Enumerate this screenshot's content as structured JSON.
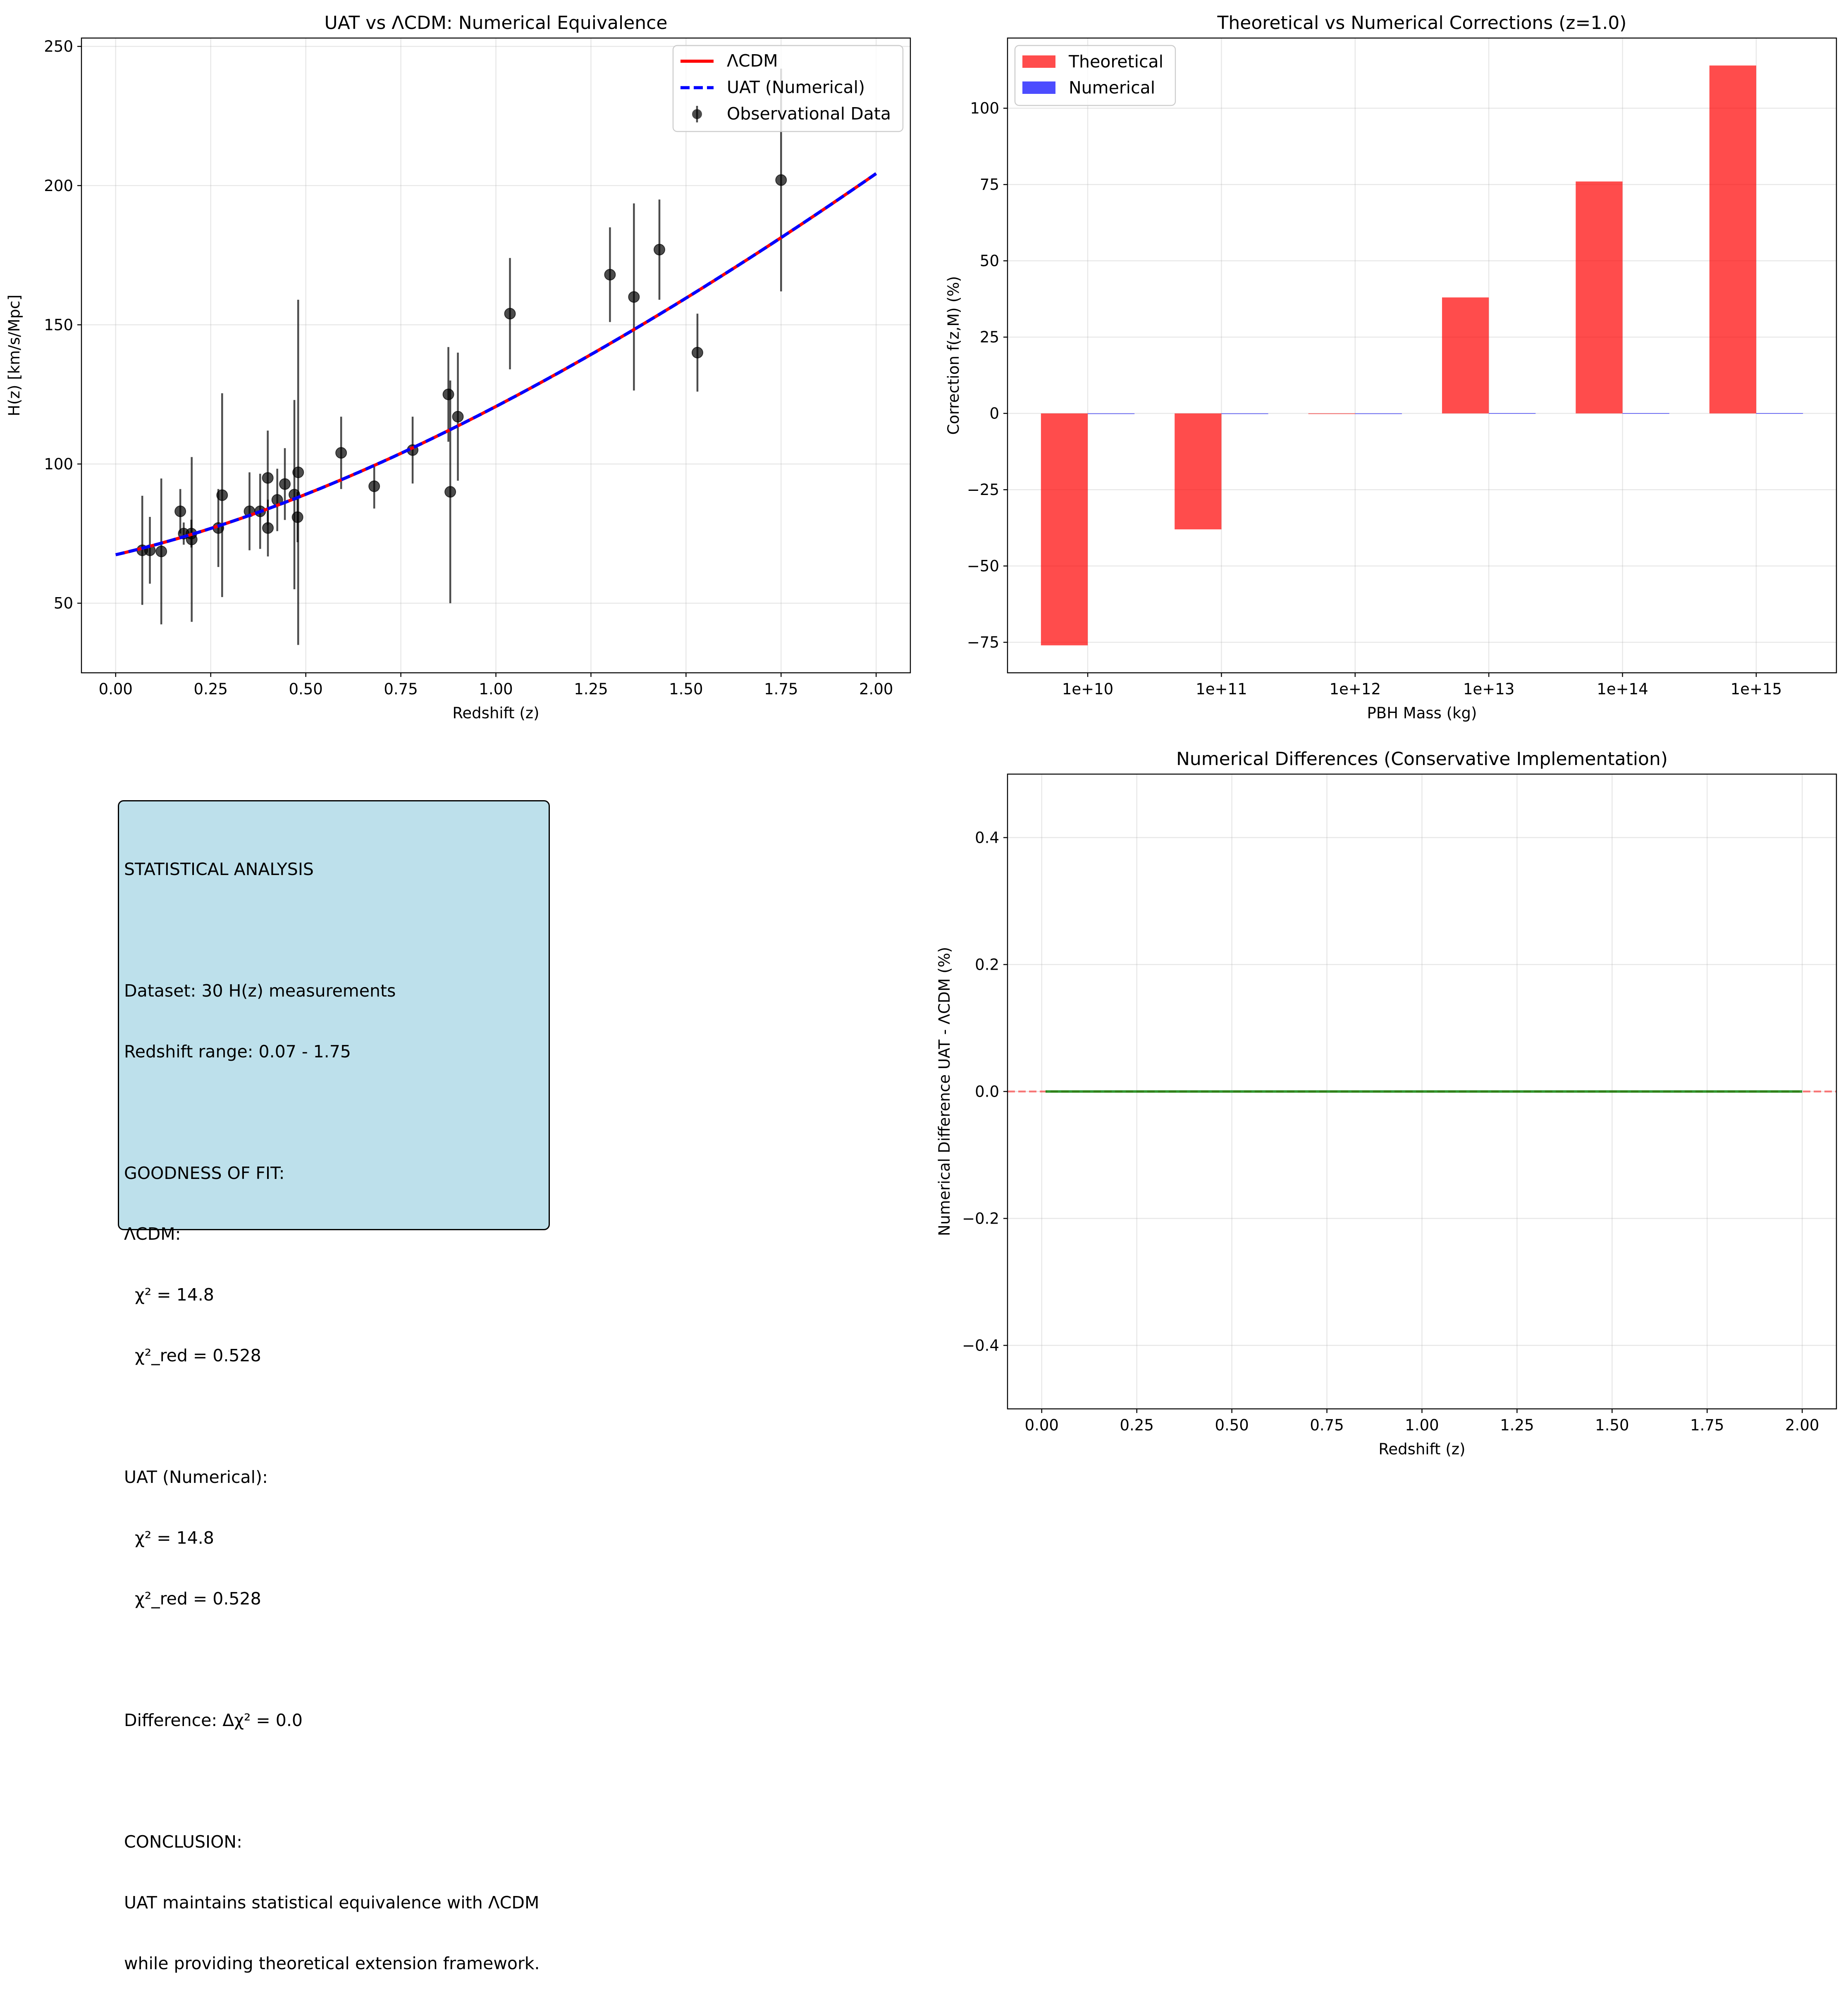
{
  "chart_data": [
    {
      "id": "panel-top-left",
      "type": "line",
      "title": "UAT vs ΛCDM: Numerical Equivalence",
      "xlabel": "Redshift (z)",
      "ylabel": "H(z) [km/s/Mpc]",
      "xlim": [
        -0.09,
        2.09
      ],
      "ylim": [
        25,
        253
      ],
      "xticks": [
        0.0,
        0.25,
        0.5,
        0.75,
        1.0,
        1.25,
        1.5,
        1.75,
        2.0
      ],
      "xtick_labels": [
        "0.00",
        "0.25",
        "0.50",
        "0.75",
        "1.00",
        "1.25",
        "1.50",
        "1.75",
        "2.00"
      ],
      "yticks": [
        50,
        100,
        150,
        200,
        250
      ],
      "ytick_labels": [
        "50",
        "100",
        "150",
        "200",
        "250"
      ],
      "grid": true,
      "legend_position": "top-right",
      "series": [
        {
          "name": "ΛCDM",
          "style": "solid",
          "color": "#ff0000",
          "model": {
            "H0": 67.4,
            "Om": 0.315,
            "OL": 0.685
          },
          "x_range": [
            0,
            2
          ]
        },
        {
          "name": "UAT (Numerical)",
          "style": "dashed",
          "color": "#0000ff",
          "model": {
            "H0": 67.4,
            "Om": 0.315,
            "OL": 0.685
          },
          "x_range": [
            0,
            2
          ]
        }
      ],
      "points": {
        "name": "Observational Data",
        "color": "#000000",
        "z": [
          0.07,
          0.09,
          0.12,
          0.17,
          0.179,
          0.199,
          0.2,
          0.27,
          0.28,
          0.352,
          0.38,
          0.4,
          0.4004,
          0.425,
          0.445,
          0.47,
          0.4783,
          0.48,
          0.593,
          0.68,
          0.781,
          0.875,
          0.88,
          0.9,
          1.037,
          1.3,
          1.363,
          1.43,
          1.53,
          1.75
        ],
        "H": [
          69,
          69,
          68.6,
          83,
          75,
          75,
          72.9,
          77,
          88.8,
          83,
          83,
          95,
          77,
          87.1,
          92.8,
          89,
          80.9,
          97,
          104,
          92,
          105,
          125,
          90,
          117,
          154,
          168,
          160,
          177,
          140,
          202
        ],
        "err": [
          19.6,
          12,
          26.2,
          8,
          4,
          5,
          29.6,
          14,
          36.6,
          14,
          13.5,
          17,
          10.2,
          11.2,
          12.9,
          34,
          9,
          62,
          13,
          8,
          12,
          17,
          40,
          23,
          20,
          17,
          33.6,
          18,
          14,
          40
        ]
      }
    },
    {
      "id": "panel-top-right",
      "type": "bar",
      "title": "Theoretical vs Numerical Corrections (z=1.0)",
      "xlabel": "PBH Mass (kg)",
      "ylabel": "Correction f(z,M) (%)",
      "categories": [
        "1e+10",
        "1e+11",
        "1e+12",
        "1e+13",
        "1e+14",
        "1e+15"
      ],
      "ylim": [
        -85,
        123
      ],
      "yticks": [
        -75,
        -50,
        -25,
        0,
        25,
        50,
        75,
        100
      ],
      "ytick_labels": [
        "−75",
        "−50",
        "−25",
        "0",
        "25",
        "50",
        "75",
        "100"
      ],
      "grid": true,
      "legend_position": "top-left",
      "series": [
        {
          "name": "Theoretical",
          "color": "#ff0000",
          "values": [
            -76,
            -38,
            0,
            38,
            76,
            114
          ]
        },
        {
          "name": "Numerical",
          "color": "#0000ff",
          "values": [
            -0.2,
            -0.2,
            0,
            0.1,
            0.1,
            0.1
          ]
        }
      ]
    },
    {
      "id": "panel-bottom-right",
      "type": "line",
      "title": "Numerical Differences (Conservative Implementation)",
      "xlabel": "Redshift (z)",
      "ylabel": "Numerical Difference UAT - ΛCDM (%)",
      "xlim": [
        -0.09,
        2.09
      ],
      "ylim": [
        -0.5,
        0.5
      ],
      "xticks": [
        0.0,
        0.25,
        0.5,
        0.75,
        1.0,
        1.25,
        1.5,
        1.75,
        2.0
      ],
      "xtick_labels": [
        "0.00",
        "0.25",
        "0.50",
        "0.75",
        "1.00",
        "1.25",
        "1.50",
        "1.75",
        "2.00"
      ],
      "yticks": [
        -0.4,
        -0.2,
        0.0,
        0.2,
        0.4
      ],
      "ytick_labels": [
        "−0.4",
        "−0.2",
        "0.0",
        "0.2",
        "0.4"
      ],
      "grid": true,
      "series": [
        {
          "name": "difference",
          "color": "#008000",
          "style": "solid",
          "x": [
            0.01,
            2.0
          ],
          "y": [
            0.0,
            0.0
          ]
        }
      ],
      "reference_line": {
        "y": 0.0,
        "color": "#ff0000",
        "style": "dashed"
      }
    }
  ],
  "stats": {
    "lines": [
      "STATISTICAL ANALYSIS",
      "",
      "Dataset: 30 H(z) measurements",
      "Redshift range: 0.07 - 1.75",
      "",
      "GOODNESS OF FIT:",
      "ΛCDM:",
      "  χ² = 14.8",
      "  χ²_red = 0.528",
      "",
      "UAT (Numerical):",
      "  χ² = 14.8",
      "  χ²_red = 0.528",
      "",
      "Difference: Δχ² = 0.0",
      "",
      "CONCLUSION:",
      "UAT maintains statistical equivalence with ΛCDM",
      "while providing theoretical extension framework."
    ]
  }
}
